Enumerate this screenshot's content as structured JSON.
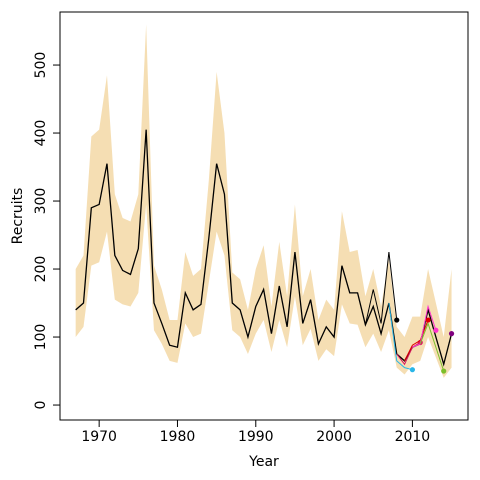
{
  "chart_data": {
    "type": "line",
    "xlabel": "Year",
    "ylabel": "Recruits",
    "x": [
      1967,
      1968,
      1969,
      1970,
      1971,
      1972,
      1973,
      1974,
      1975,
      1976,
      1977,
      1978,
      1979,
      1980,
      1981,
      1982,
      1983,
      1984,
      1985,
      1986,
      1987,
      1988,
      1989,
      1990,
      1991,
      1992,
      1993,
      1994,
      1995,
      1996,
      1997,
      1998,
      1999,
      2000,
      2001,
      2002,
      2003,
      2004,
      2005,
      2006,
      2007,
      2008,
      2009,
      2010,
      2011,
      2012,
      2013,
      2014,
      2015
    ],
    "band": {
      "color": "#f5deb3",
      "upper": [
        200,
        220,
        395,
        405,
        485,
        310,
        275,
        270,
        310,
        560,
        205,
        170,
        125,
        125,
        225,
        190,
        200,
        330,
        490,
        400,
        195,
        185,
        140,
        200,
        235,
        145,
        240,
        160,
        295,
        160,
        200,
        125,
        155,
        140,
        285,
        225,
        228,
        160,
        200,
        145,
        215,
        115,
        100,
        130,
        130,
        200,
        150,
        100,
        200
      ],
      "lower": [
        100,
        115,
        205,
        210,
        255,
        155,
        148,
        145,
        165,
        295,
        110,
        90,
        65,
        62,
        120,
        100,
        105,
        180,
        255,
        220,
        110,
        100,
        75,
        105,
        125,
        78,
        125,
        85,
        160,
        88,
        112,
        65,
        82,
        72,
        148,
        120,
        118,
        85,
        105,
        78,
        110,
        55,
        45,
        60,
        65,
        100,
        70,
        40,
        55
      ]
    },
    "series": [
      {
        "color": "#000000",
        "marker_color": "#800080",
        "values": [
          140,
          150,
          290,
          295,
          355,
          220,
          198,
          192,
          230,
          405,
          150,
          120,
          88,
          85,
          165,
          140,
          148,
          245,
          355,
          310,
          150,
          140,
          100,
          145,
          170,
          105,
          175,
          115,
          225,
          120,
          155,
          90,
          115,
          100,
          205,
          165,
          165,
          118,
          145,
          105,
          150,
          75,
          65,
          85,
          90,
          140,
          100,
          60,
          105
        ]
      },
      {
        "color": "#000000",
        "marker_color": "#000000",
        "x": [
          2004,
          2005,
          2006,
          2007,
          2008
        ],
        "values": [
          118,
          170,
          120,
          225,
          125
        ]
      },
      {
        "color": "#29b6e8",
        "marker_color": "#29b6e8",
        "x": [
          2007,
          2008,
          2009,
          2010
        ],
        "values": [
          150,
          65,
          55,
          52
        ]
      },
      {
        "color": "#d81b60",
        "marker_color": "#d81b60",
        "x": [
          2008,
          2009,
          2010,
          2011
        ],
        "values": [
          75,
          60,
          85,
          92
        ]
      },
      {
        "color": "#e00000",
        "marker_color": "#e00000",
        "x": [
          2009,
          2010,
          2011,
          2012
        ],
        "values": [
          65,
          88,
          95,
          125
        ]
      },
      {
        "color": "#ff33cc",
        "marker_color": "#ff33cc",
        "x": [
          2010,
          2011,
          2012,
          2013
        ],
        "values": [
          85,
          90,
          145,
          110
        ]
      },
      {
        "color": "#7cbf2a",
        "marker_color": "#7cbf2a",
        "x": [
          2011,
          2012,
          2013,
          2014
        ],
        "values": [
          90,
          120,
          85,
          50
        ]
      }
    ],
    "xlim": [
      1965,
      2017.1
    ],
    "ylim": [
      -22,
      578
    ],
    "xticks": [
      1970,
      1980,
      1990,
      2000,
      2010
    ],
    "yticks": [
      0,
      100,
      200,
      300,
      400,
      500
    ]
  }
}
